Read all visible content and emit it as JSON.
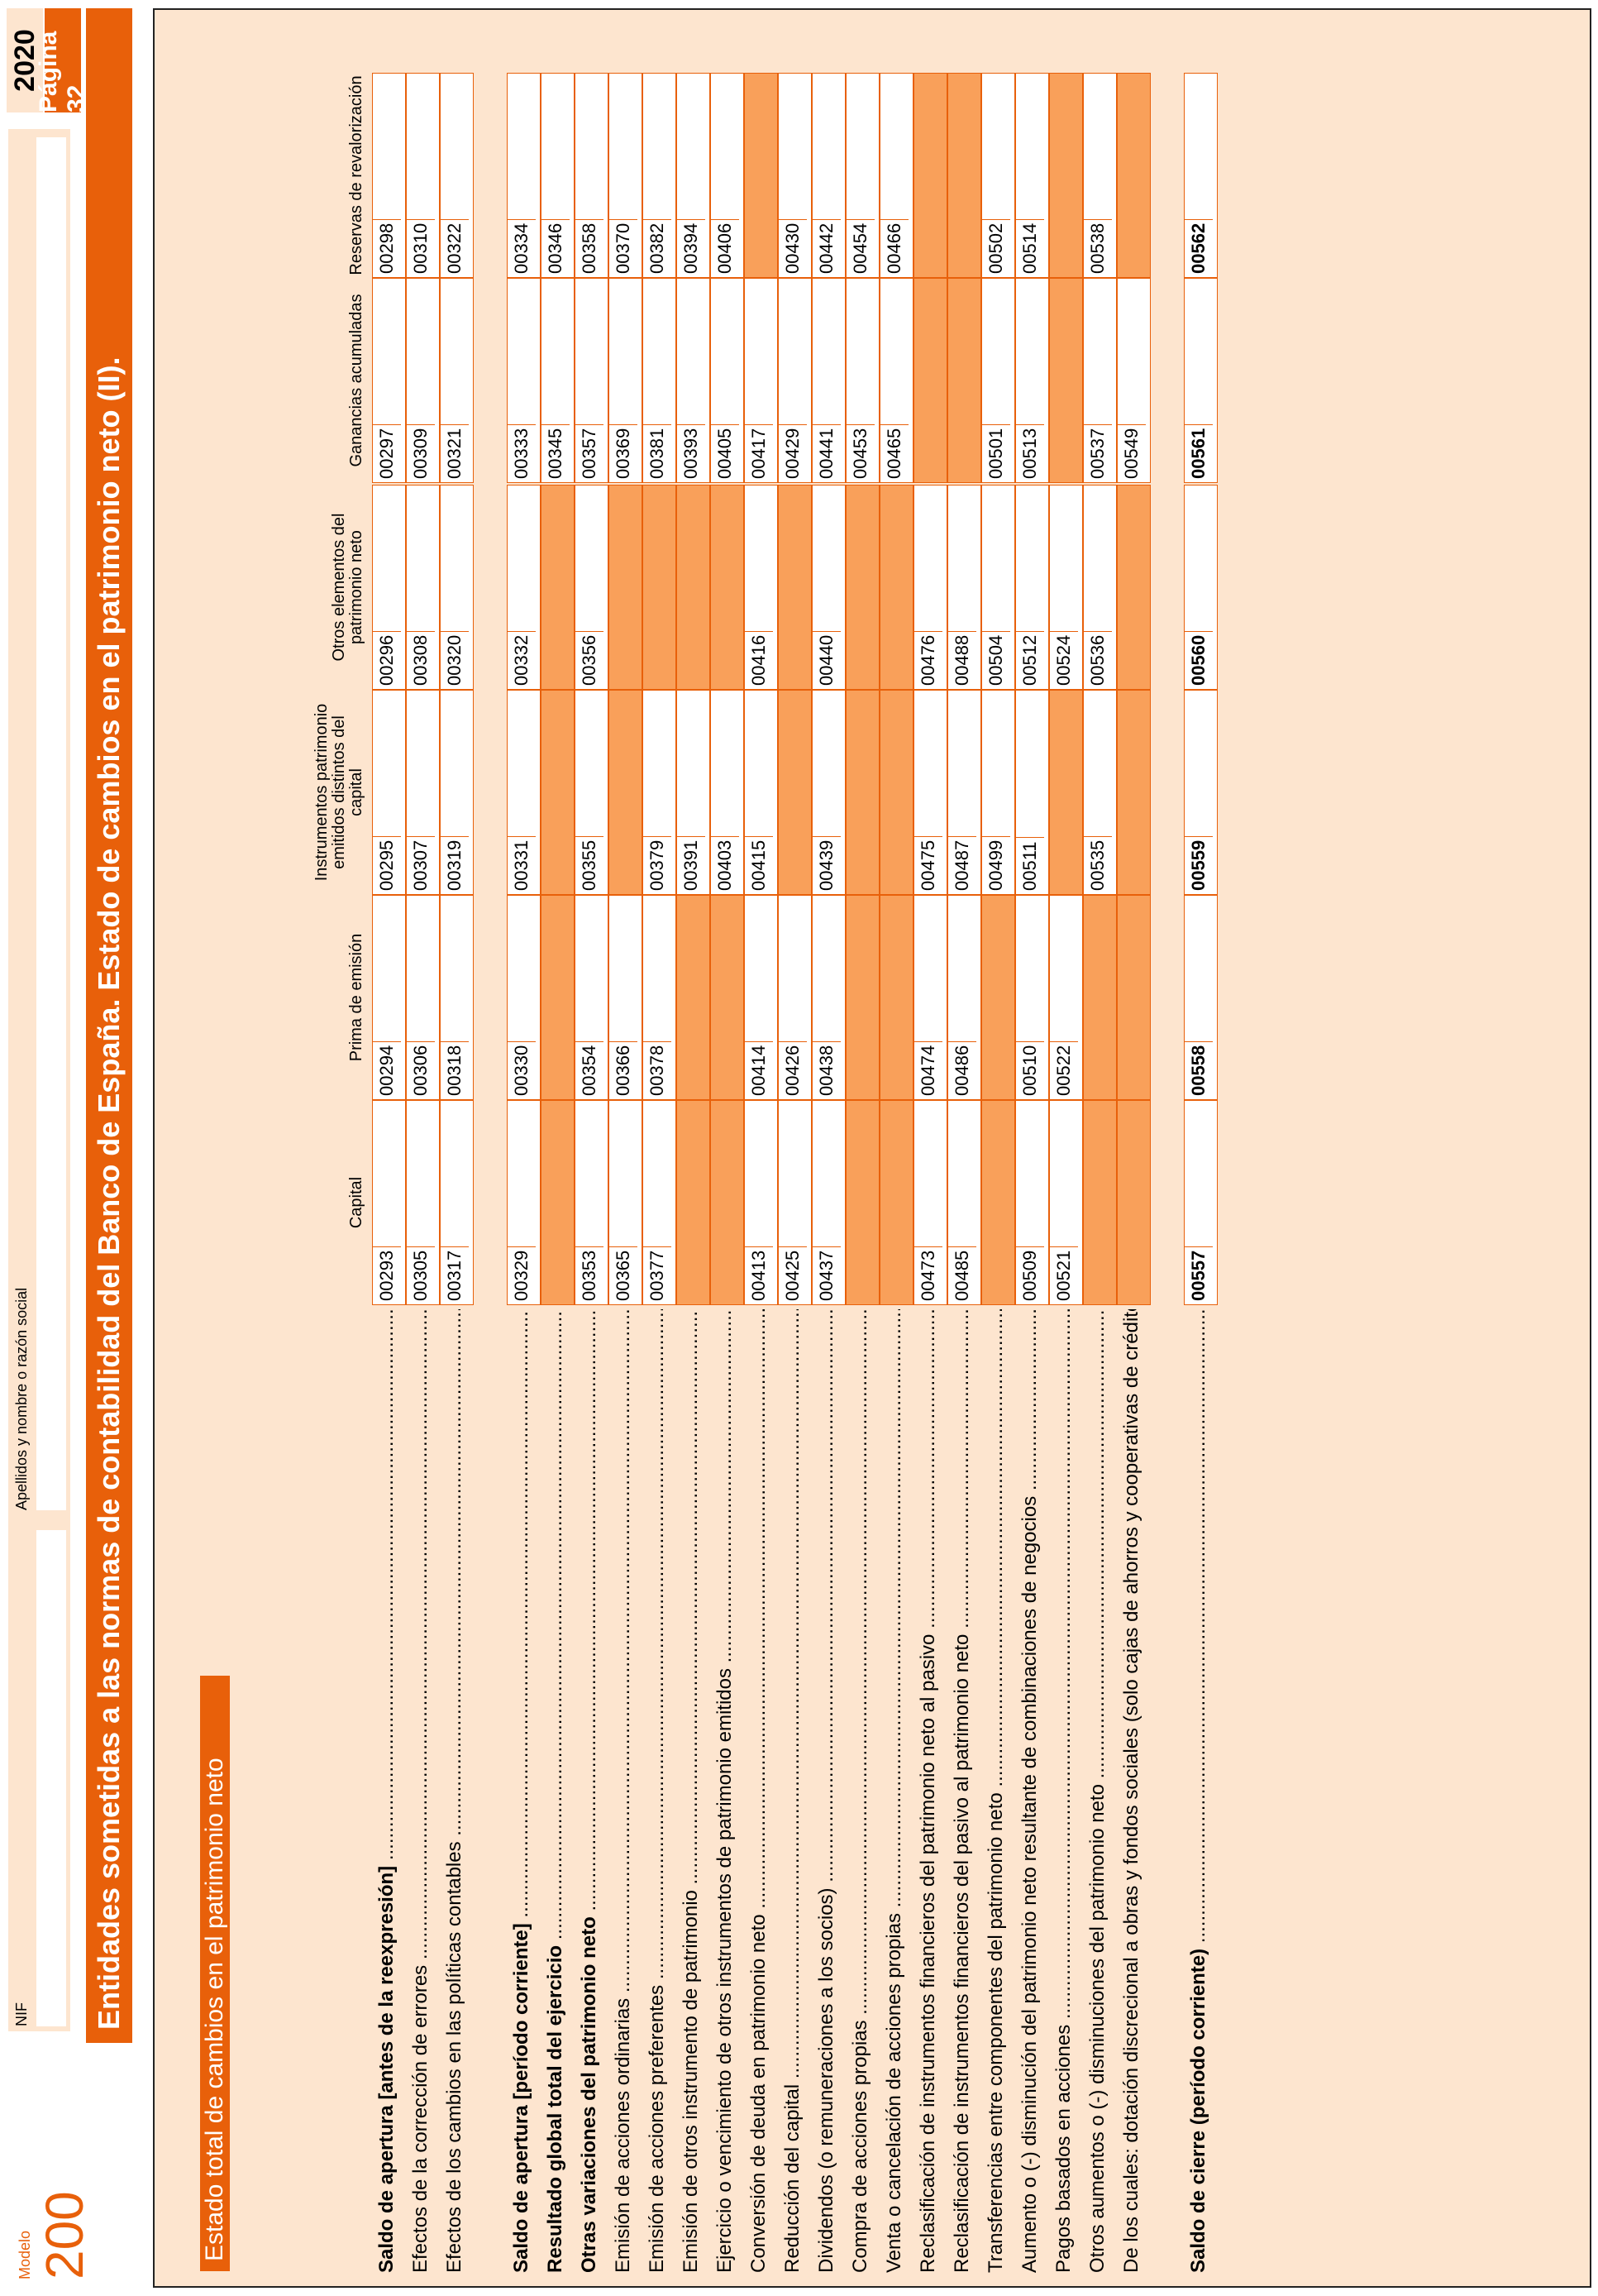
{
  "header": {
    "modelo_label": "Modelo",
    "modelo_number": "200",
    "nif_label": "NIF",
    "name_label": "Apellidos y nombre o razón social",
    "year": "2020",
    "page": "Página 32",
    "title": "Entidades sometidas a las normas de contabilidad del Banco de España. Estado de cambios en el patrimonio neto (II)."
  },
  "section": {
    "title": "Estado total de cambios en el patrimonio neto"
  },
  "columns": [
    "Capital",
    "Prima de emisión",
    "Instrumentos patrimonio emitidos distintos del capital",
    "Otros elementos del patrimonio neto",
    "Ganancias acumuladas",
    "Reservas de revalorización"
  ],
  "rows": [
    {
      "label": "Saldo de apertura [antes de la reexpresión]",
      "bold": true,
      "cells": [
        {
          "code": "00293"
        },
        {
          "code": "00294"
        },
        {
          "code": "00295"
        },
        {
          "code": "00296"
        },
        {
          "code": "00297"
        },
        {
          "code": "00298"
        }
      ]
    },
    {
      "label": "Efectos de la corrección de errores",
      "bold": false,
      "cells": [
        {
          "code": "00305"
        },
        {
          "code": "00306"
        },
        {
          "code": "00307"
        },
        {
          "code": "00308"
        },
        {
          "code": "00309"
        },
        {
          "code": "00310"
        }
      ]
    },
    {
      "label": "Efectos de los cambios en las políticas contables",
      "bold": false,
      "cells": [
        {
          "code": "00317"
        },
        {
          "code": "00318"
        },
        {
          "code": "00319"
        },
        {
          "code": "00320"
        },
        {
          "code": "00321"
        },
        {
          "code": "00322"
        }
      ]
    },
    {
      "label": "Saldo de apertura [período corriente]",
      "bold": true,
      "gap": true,
      "cells": [
        {
          "code": "00329"
        },
        {
          "code": "00330"
        },
        {
          "code": "00331"
        },
        {
          "code": "00332"
        },
        {
          "code": "00333"
        },
        {
          "code": "00334"
        }
      ]
    },
    {
      "label": "Resultado global total del ejercicio",
      "bold": true,
      "cells": [
        {
          "code": "",
          "dis": true
        },
        {
          "code": "",
          "dis": true
        },
        {
          "code": "",
          "dis": true
        },
        {
          "code": "",
          "dis": true
        },
        {
          "code": "00345"
        },
        {
          "code": "00346"
        }
      ]
    },
    {
      "label": "Otras variaciones del patrimonio neto",
      "bold": true,
      "cells": [
        {
          "code": "00353"
        },
        {
          "code": "00354"
        },
        {
          "code": "00355"
        },
        {
          "code": "00356"
        },
        {
          "code": "00357"
        },
        {
          "code": "00358"
        }
      ]
    },
    {
      "label": "Emisión de acciones ordinarias",
      "bold": false,
      "cells": [
        {
          "code": "00365"
        },
        {
          "code": "00366"
        },
        {
          "code": "",
          "dis": true
        },
        {
          "code": "",
          "dis": true
        },
        {
          "code": "00369"
        },
        {
          "code": "00370"
        }
      ]
    },
    {
      "label": "Emisión de acciones preferentes",
      "bold": false,
      "cells": [
        {
          "code": "00377"
        },
        {
          "code": "00378"
        },
        {
          "code": "00379"
        },
        {
          "code": "",
          "dis": true
        },
        {
          "code": "00381"
        },
        {
          "code": "00382"
        }
      ]
    },
    {
      "label": "Emisión de otros instrumento de patrimonio",
      "bold": false,
      "cells": [
        {
          "code": "",
          "dis": true
        },
        {
          "code": "",
          "dis": true
        },
        {
          "code": "00391"
        },
        {
          "code": "",
          "dis": true
        },
        {
          "code": "00393"
        },
        {
          "code": "00394"
        }
      ]
    },
    {
      "label": "Ejercicio o vencimiento de otros instrumentos de patrimonio emitidos",
      "bold": false,
      "cells": [
        {
          "code": "",
          "dis": true
        },
        {
          "code": "",
          "dis": true
        },
        {
          "code": "00403"
        },
        {
          "code": "",
          "dis": true
        },
        {
          "code": "00405"
        },
        {
          "code": "00406"
        }
      ]
    },
    {
      "label": "Conversión de deuda en patrimonio neto",
      "bold": false,
      "cells": [
        {
          "code": "00413"
        },
        {
          "code": "00414"
        },
        {
          "code": "00415"
        },
        {
          "code": "00416"
        },
        {
          "code": "00417"
        },
        {
          "code": "",
          "dis": true
        }
      ]
    },
    {
      "label": "Reducción del capital",
      "bold": false,
      "cells": [
        {
          "code": "00425"
        },
        {
          "code": "00426"
        },
        {
          "code": "",
          "dis": true
        },
        {
          "code": "",
          "dis": true
        },
        {
          "code": "00429"
        },
        {
          "code": "00430"
        }
      ]
    },
    {
      "label": "Dividendos (o remuneraciones a los socios)",
      "bold": false,
      "cells": [
        {
          "code": "00437"
        },
        {
          "code": "00438"
        },
        {
          "code": "00439"
        },
        {
          "code": "00440"
        },
        {
          "code": "00441"
        },
        {
          "code": "00442"
        }
      ]
    },
    {
      "label": "Compra de acciones propias",
      "bold": false,
      "cells": [
        {
          "code": "",
          "dis": true
        },
        {
          "code": "",
          "dis": true
        },
        {
          "code": "",
          "dis": true
        },
        {
          "code": "",
          "dis": true
        },
        {
          "code": "00453"
        },
        {
          "code": "00454"
        }
      ]
    },
    {
      "label": "Venta o cancelación de acciones propias",
      "bold": false,
      "cells": [
        {
          "code": "",
          "dis": true
        },
        {
          "code": "",
          "dis": true
        },
        {
          "code": "",
          "dis": true
        },
        {
          "code": "",
          "dis": true
        },
        {
          "code": "00465"
        },
        {
          "code": "00466"
        }
      ]
    },
    {
      "label": "Reclasificación de instrumentos financieros del patrimonio neto al pasivo",
      "bold": false,
      "cells": [
        {
          "code": "00473"
        },
        {
          "code": "00474"
        },
        {
          "code": "00475"
        },
        {
          "code": "00476"
        },
        {
          "code": "",
          "dis": true
        },
        {
          "code": "",
          "dis": true
        }
      ]
    },
    {
      "label": "Reclasificación de instrumentos financieros del pasivo al patrimonio neto",
      "bold": false,
      "cells": [
        {
          "code": "00485"
        },
        {
          "code": "00486"
        },
        {
          "code": "00487"
        },
        {
          "code": "00488"
        },
        {
          "code": "",
          "dis": true
        },
        {
          "code": "",
          "dis": true
        }
      ]
    },
    {
      "label": "Transferencias entre componentes del patrimonio neto",
      "bold": false,
      "cells": [
        {
          "code": "",
          "dis": true
        },
        {
          "code": "",
          "dis": true
        },
        {
          "code": "00499"
        },
        {
          "code": "00504"
        },
        {
          "code": "00501"
        },
        {
          "code": "00502"
        }
      ]
    },
    {
      "label": "Aumento o (-) disminución del patrimonio neto resultante de combinaciones de negocios",
      "bold": false,
      "cells": [
        {
          "code": "00509"
        },
        {
          "code": "00510"
        },
        {
          "code": "00511"
        },
        {
          "code": "00512"
        },
        {
          "code": "00513"
        },
        {
          "code": "00514"
        }
      ]
    },
    {
      "label": "Pagos basados en acciones",
      "bold": false,
      "cells": [
        {
          "code": "00521"
        },
        {
          "code": "00522"
        },
        {
          "code": "",
          "dis": true
        },
        {
          "code": "00524"
        },
        {
          "code": "",
          "dis": true
        },
        {
          "code": "",
          "dis": true
        }
      ]
    },
    {
      "label": "Otros aumentos o (-) disminuciones del patrimonio neto",
      "bold": false,
      "cells": [
        {
          "code": "",
          "dis": true
        },
        {
          "code": "",
          "dis": true
        },
        {
          "code": "00535"
        },
        {
          "code": "00536"
        },
        {
          "code": "00537"
        },
        {
          "code": "00538"
        }
      ]
    },
    {
      "label": "De los cuales: dotación discrecional a obras y fondos sociales (solo cajas de ahorros y cooperativas de crédito)",
      "bold": false,
      "nodots": true,
      "cells": [
        {
          "code": "",
          "dis": true
        },
        {
          "code": "",
          "dis": true
        },
        {
          "code": "",
          "dis": true
        },
        {
          "code": "",
          "dis": true
        },
        {
          "code": "00549"
        },
        {
          "code": "",
          "dis": true
        }
      ]
    },
    {
      "label": "Saldo de cierre (período corriente)",
      "bold": true,
      "gap": true,
      "boldcodes": true,
      "cells": [
        {
          "code": "00557"
        },
        {
          "code": "00558"
        },
        {
          "code": "00559"
        },
        {
          "code": "00560"
        },
        {
          "code": "00561"
        },
        {
          "code": "00562"
        }
      ]
    }
  ],
  "colors": {
    "accent": "#e8600a",
    "light": "#fde5cf",
    "disabled": "#f9a05a"
  }
}
